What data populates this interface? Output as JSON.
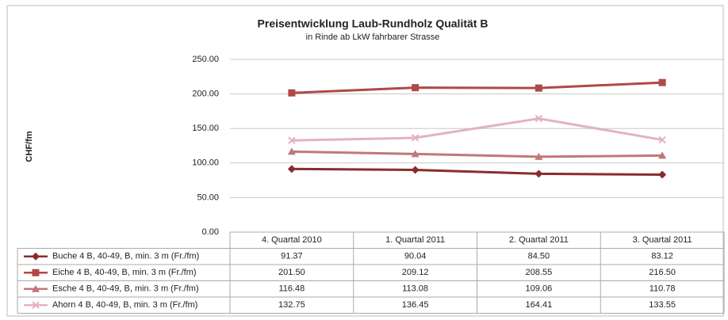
{
  "chart_data": {
    "type": "line",
    "title": "Preisentwicklung Laub-Rundholz Qualität B",
    "subtitle": "in Rinde ab LkW fahrbarer Strasse",
    "y_label": "CHF/fm",
    "categories": [
      "4. Quartal 2010",
      "1. Quartal 2011",
      "2. Quartal 2011",
      "3. Quartal 2011"
    ],
    "series": [
      {
        "name": "Buche 4 B, 40-49, B, min. 3 m (Fr./fm)",
        "color": "#8b2c2c",
        "marker": "diamond",
        "values": [
          91.37,
          90.04,
          84.5,
          83.12
        ],
        "value_labels": [
          "91.37",
          "90.04",
          "84.50",
          "83.12"
        ]
      },
      {
        "name": "Eiche 4 B, 40-49, B, min. 3 m (Fr./fm)",
        "color": "#b04848",
        "marker": "square",
        "values": [
          201.5,
          209.12,
          208.55,
          216.5
        ],
        "value_labels": [
          "201.50",
          "209.12",
          "208.55",
          "216.50"
        ]
      },
      {
        "name": "Esche 4 B, 40-49, B, min. 3 m (Fr./fm)",
        "color": "#c07878",
        "marker": "triangle",
        "values": [
          116.48,
          113.08,
          109.06,
          110.78
        ],
        "value_labels": [
          "116.48",
          "113.08",
          "109.06",
          "110.78"
        ]
      },
      {
        "name": "Ahorn 4 B, 40-49, B, min. 3 m (Fr./fm)",
        "color": "#e3b3bd",
        "marker": "x",
        "values": [
          132.75,
          136.45,
          164.41,
          133.55
        ],
        "value_labels": [
          "132.75",
          "136.45",
          "164.41",
          "133.55"
        ]
      }
    ],
    "ylim": [
      0,
      250
    ],
    "yticks": [
      {
        "value": 0,
        "label": "0.00"
      },
      {
        "value": 50,
        "label": "50.00"
      },
      {
        "value": 100,
        "label": "100.00"
      },
      {
        "value": 150,
        "label": "150.00"
      },
      {
        "value": 200,
        "label": "200.00"
      },
      {
        "value": 250,
        "label": "250.00"
      }
    ],
    "grid": true
  }
}
